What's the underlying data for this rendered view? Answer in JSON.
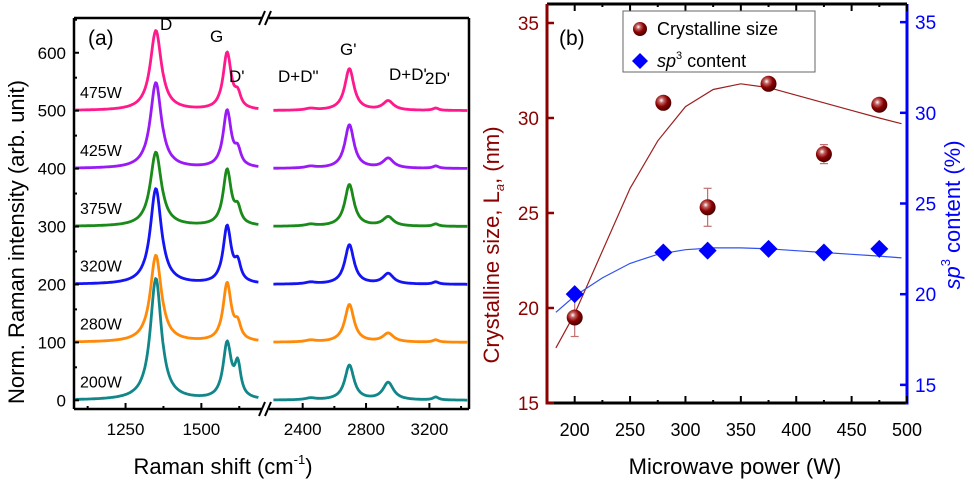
{
  "chart_data": [
    {
      "panel": "(a)",
      "type": "line",
      "xlabel": "Raman shift (cm",
      "xlabel_sup": "-1",
      "xlabel_tail": ")",
      "ylabel": "Norm. Raman intensity (arb. unit)",
      "x_segments": [
        {
          "xlim": [
            1080,
            1700
          ],
          "ticks": [
            1250,
            1500
          ],
          "minor_ticks": [
            1125,
            1375,
            1625
          ]
        },
        {
          "xlim": [
            2200,
            3450
          ],
          "ticks": [
            2400,
            2800,
            3200
          ],
          "minor_ticks": [
            2600,
            3000,
            3400
          ]
        }
      ],
      "axis_break": true,
      "ylim": [
        -15,
        660
      ],
      "yticks": [
        0,
        100,
        200,
        300,
        400,
        500,
        600
      ],
      "peak_labels": [
        "D",
        "G",
        "D'",
        "D+D\"",
        "G'",
        "D+D'",
        "2D'"
      ],
      "series": [
        {
          "name": "200W",
          "color": "#12878A",
          "offset": 0,
          "peaks": {
            "D": 210,
            "G": 95,
            "Dp": 55,
            "DDpp": 3,
            "Gp": 60,
            "DDp": 30,
            "TwoDp": 5
          }
        },
        {
          "name": "280W",
          "color": "#FF8A0A",
          "offset": 100,
          "peaks": {
            "D": 150,
            "G": 100,
            "Dp": 25,
            "DDpp": 3,
            "Gp": 65,
            "DDp": 15,
            "TwoDp": 4
          }
        },
        {
          "name": "320W",
          "color": "#1414F5",
          "offset": 200,
          "peaks": {
            "D": 165,
            "G": 98,
            "Dp": 30,
            "DDpp": 3,
            "Gp": 68,
            "DDp": 18,
            "TwoDp": 4
          }
        },
        {
          "name": "375W",
          "color": "#1A8A1A",
          "offset": 300,
          "peaks": {
            "D": 128,
            "G": 96,
            "Dp": 25,
            "DDpp": 3,
            "Gp": 72,
            "DDp": 16,
            "TwoDp": 4
          }
        },
        {
          "name": "425W",
          "color": "#9A1AF5",
          "offset": 400,
          "peaks": {
            "D": 148,
            "G": 98,
            "Dp": 25,
            "DDpp": 3,
            "Gp": 75,
            "DDp": 17,
            "TwoDp": 4
          }
        },
        {
          "name": "475W",
          "color": "#FF1A8C",
          "offset": 500,
          "peaks": {
            "D": 138,
            "G": 98,
            "Dp": 22,
            "DDpp": 3,
            "Gp": 72,
            "DDp": 16,
            "TwoDp": 4
          }
        }
      ],
      "peak_positions": {
        "D": 1350,
        "G": 1585,
        "Dp": 1620,
        "DDpp": 2450,
        "Gp": 2695,
        "DDp": 2940,
        "TwoDp": 3240
      }
    },
    {
      "panel": "(b)",
      "type": "scatter",
      "xlabel": "Microwave power (W)",
      "xlim": [
        175,
        500
      ],
      "xticks": [
        200,
        250,
        300,
        350,
        400,
        450,
        500
      ],
      "x_minor_ticks": [
        225,
        275,
        325,
        375,
        425,
        475
      ],
      "ylabel_left": "Crystalline size, L",
      "ylabel_left_sub": "a",
      "ylabel_left_tail": ", (nm)",
      "ylim_left": [
        15,
        36
      ],
      "yticks_left": [
        15,
        20,
        25,
        30,
        35
      ],
      "ylabel_right_pre": "sp",
      "ylabel_right_sup": "3",
      "ylabel_right_tail": " content (%)",
      "ylim_right": [
        14,
        36
      ],
      "yticks_right": [
        15,
        20,
        25,
        30,
        35
      ],
      "legend": {
        "position": "top",
        "entries": [
          "Crystalline size",
          "sp3 content"
        ]
      },
      "series": [
        {
          "name": "Crystalline size",
          "axis": "left",
          "color": "#8B0000",
          "marker": "sphere",
          "x": [
            200,
            280,
            320,
            375,
            425,
            475
          ],
          "y": [
            19.5,
            30.8,
            25.3,
            31.8,
            28.1,
            30.7
          ],
          "yerr": [
            1.0,
            0,
            1.0,
            0,
            0.5,
            0
          ],
          "fit": {
            "x": [
              183,
              200,
              225,
              250,
              275,
              300,
              325,
              350,
              375,
              400,
              425,
              450,
              475,
              495
            ],
            "y": [
              17.9,
              19.7,
              23.0,
              26.3,
              28.8,
              30.6,
              31.5,
              31.8,
              31.6,
              31.2,
              30.8,
              30.4,
              30.0,
              29.7
            ]
          }
        },
        {
          "name": "sp3 content",
          "axis": "right",
          "color": "#0000FF",
          "marker": "diamond",
          "x": [
            200,
            280,
            320,
            375,
            425,
            475
          ],
          "y": [
            20.0,
            22.3,
            22.4,
            22.5,
            22.3,
            22.5
          ],
          "fit": {
            "x": [
              183,
              200,
              225,
              250,
              275,
              300,
              325,
              350,
              375,
              400,
              425,
              450,
              475,
              495
            ],
            "y": [
              19.0,
              19.9,
              20.9,
              21.7,
              22.2,
              22.45,
              22.55,
              22.55,
              22.5,
              22.4,
              22.3,
              22.2,
              22.1,
              22.0
            ]
          }
        }
      ]
    }
  ]
}
